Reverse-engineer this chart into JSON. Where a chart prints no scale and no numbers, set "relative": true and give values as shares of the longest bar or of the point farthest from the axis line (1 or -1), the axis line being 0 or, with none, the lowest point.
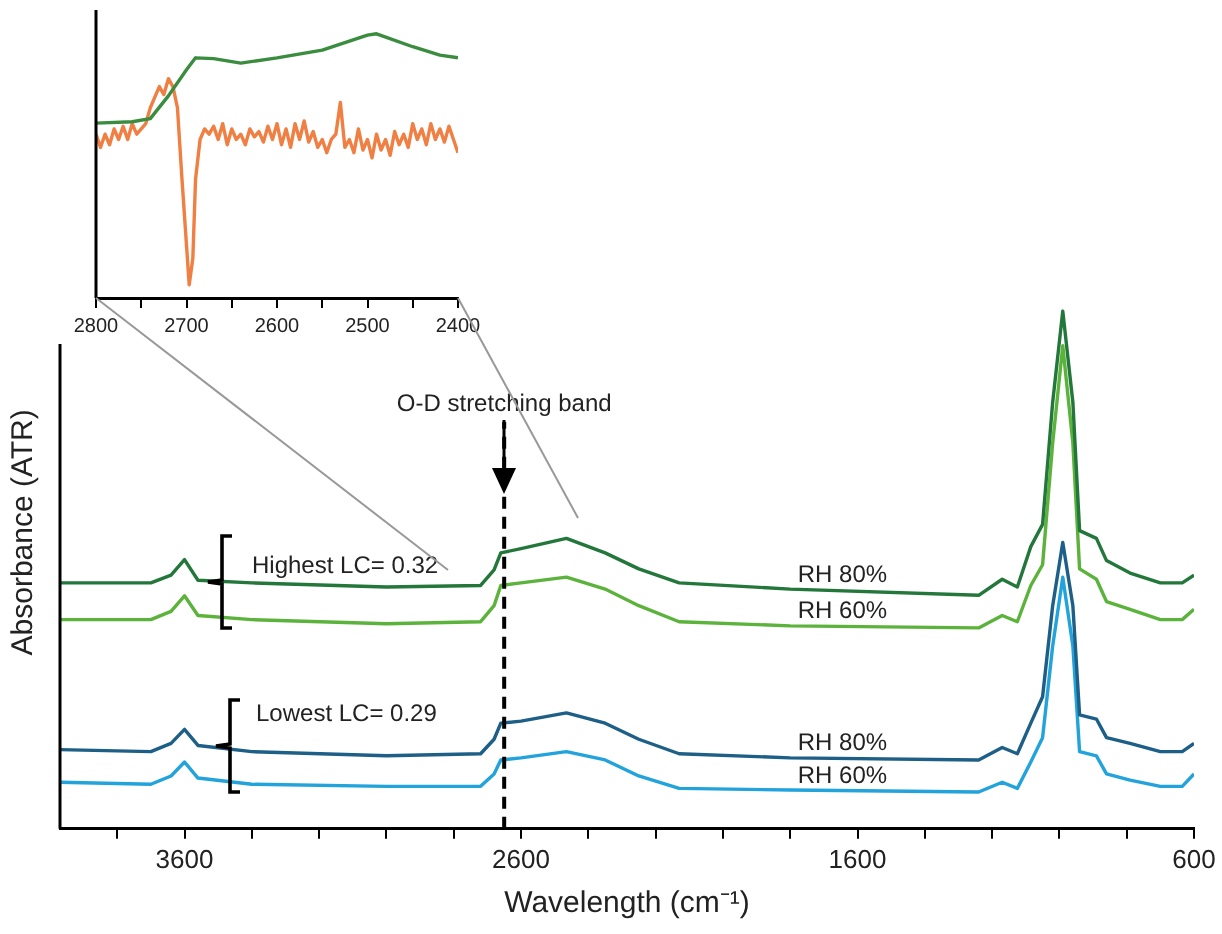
{
  "chart_data": [
    {
      "type": "line",
      "relative": true,
      "xlabel": "Wavelength (cm⁻¹)",
      "ylabel": "Absorbance (ATR)",
      "xlim": [
        3970,
        600
      ],
      "xticks": [
        {
          "value": 3800,
          "label": null
        },
        3600,
        {
          "value": 3400,
          "label": null
        },
        {
          "value": 3200,
          "label": null
        },
        {
          "value": 3000,
          "label": null
        },
        {
          "value": 2800,
          "label": null
        },
        2600,
        {
          "value": 2400,
          "label": null
        },
        {
          "value": 2200,
          "label": null
        },
        {
          "value": 2000,
          "label": null
        },
        {
          "value": 1800,
          "label": null
        },
        1600,
        {
          "value": 1400,
          "label": null
        },
        {
          "value": 1200,
          "label": null
        },
        {
          "value": 1000,
          "label": null
        },
        {
          "value": 800,
          "label": null
        },
        600
      ],
      "x": [
        3970,
        3700,
        3640,
        3600,
        3560,
        3400,
        3000,
        2720,
        2680,
        2660,
        2600,
        2465,
        2350,
        2250,
        2130,
        1800,
        1240,
        1170,
        1125,
        1085,
        1050,
        1020,
        990,
        960,
        940,
        890,
        860,
        790,
        700,
        635,
        600
      ],
      "series": [
        {
          "name": "RH 80%",
          "color": "#23773a",
          "values": [
            0.475,
            0.475,
            0.49,
            0.52,
            0.48,
            0.475,
            0.467,
            0.47,
            0.5,
            0.533,
            0.541,
            0.561,
            0.533,
            0.502,
            0.475,
            0.463,
            0.451,
            0.482,
            0.467,
            0.545,
            0.588,
            0.824,
            1,
            0.824,
            0.576,
            0.561,
            0.518,
            0.494,
            0.475,
            0.475,
            0.49
          ]
        },
        {
          "name": "RH 60%",
          "color": "#5cb33c",
          "values": [
            0.404,
            0.404,
            0.42,
            0.45,
            0.412,
            0.404,
            0.396,
            0.4,
            0.431,
            0.47,
            0.475,
            0.486,
            0.463,
            0.431,
            0.4,
            0.392,
            0.388,
            0.412,
            0.4,
            0.47,
            0.51,
            0.745,
            0.933,
            0.745,
            0.502,
            0.482,
            0.439,
            0.424,
            0.404,
            0.404,
            0.424
          ]
        },
        {
          "name": "RH 80%",
          "color": "#1d5f86",
          "values": [
            0.153,
            0.149,
            0.165,
            0.192,
            0.161,
            0.149,
            0.141,
            0.145,
            0.173,
            0.204,
            0.208,
            0.224,
            0.204,
            0.173,
            0.145,
            0.137,
            0.133,
            0.157,
            0.145,
            0.204,
            0.255,
            0.431,
            0.553,
            0.431,
            0.22,
            0.212,
            0.176,
            0.165,
            0.149,
            0.149,
            0.165
          ]
        },
        {
          "name": "RH 60%",
          "color": "#22a3dc",
          "values": [
            0.09,
            0.086,
            0.102,
            0.129,
            0.098,
            0.086,
            0.082,
            0.082,
            0.106,
            0.133,
            0.137,
            0.149,
            0.133,
            0.102,
            0.078,
            0.075,
            0.071,
            0.09,
            0.078,
            0.129,
            0.176,
            0.353,
            0.486,
            0.353,
            0.149,
            0.141,
            0.106,
            0.094,
            0.082,
            0.082,
            0.106
          ]
        }
      ],
      "ref_lines": [
        {
          "axis": "x",
          "value": 2650,
          "label": "O-D stretching band",
          "line_style": "dashed",
          "color": "#000000"
        }
      ],
      "annotations": [
        "Highest LC= 0.32",
        "Lowest LC= 0.29"
      ]
    },
    {
      "type": "line",
      "relative": true,
      "xlim": [
        2800,
        2400
      ],
      "xticks": [
        2800,
        {
          "value": 2750,
          "label": null
        },
        2700,
        {
          "value": 2650,
          "label": null
        },
        2600,
        {
          "value": 2550,
          "label": null
        },
        2500,
        {
          "value": 2450,
          "label": null
        },
        2400
      ],
      "series": [
        {
          "color": "#3a8c3f",
          "x": [
            2800,
            2760,
            2740,
            2720,
            2700,
            2690,
            2670,
            2640,
            2600,
            2550,
            2500,
            2490,
            2450,
            2420,
            2400
          ],
          "values": [
            0.662,
            0.667,
            0.679,
            0.765,
            0.864,
            0.909,
            0.906,
            0.889,
            0.909,
            0.938,
            0.995,
            1,
            0.951,
            0.919,
            0.909
          ]
        },
        {
          "color": "#f07f43",
          "x": [
            2800,
            2795,
            2790,
            2785,
            2780,
            2775,
            2770,
            2765,
            2760,
            2755,
            2750,
            2745,
            2740,
            2735,
            2730,
            2725,
            2720,
            2715,
            2710,
            2705,
            2700,
            2697,
            2693,
            2690,
            2685,
            2680,
            2675,
            2670,
            2665,
            2660,
            2655,
            2650,
            2645,
            2640,
            2635,
            2630,
            2625,
            2620,
            2615,
            2610,
            2605,
            2600,
            2595,
            2590,
            2585,
            2580,
            2575,
            2570,
            2565,
            2560,
            2555,
            2550,
            2545,
            2540,
            2535,
            2530,
            2525,
            2520,
            2515,
            2510,
            2505,
            2500,
            2495,
            2490,
            2485,
            2480,
            2475,
            2470,
            2465,
            2460,
            2455,
            2450,
            2445,
            2440,
            2435,
            2430,
            2425,
            2420,
            2415,
            2410,
            2405,
            2400
          ],
          "values": [
            0.62,
            0.57,
            0.62,
            0.58,
            0.64,
            0.6,
            0.65,
            0.6,
            0.66,
            0.62,
            0.64,
            0.66,
            0.72,
            0.76,
            0.8,
            0.77,
            0.83,
            0.8,
            0.72,
            0.45,
            0.2,
            0.05,
            0.15,
            0.45,
            0.6,
            0.64,
            0.62,
            0.65,
            0.6,
            0.66,
            0.58,
            0.64,
            0.6,
            0.62,
            0.58,
            0.64,
            0.61,
            0.63,
            0.59,
            0.65,
            0.6,
            0.66,
            0.58,
            0.64,
            0.57,
            0.66,
            0.6,
            0.67,
            0.59,
            0.63,
            0.57,
            0.6,
            0.55,
            0.6,
            0.62,
            0.74,
            0.57,
            0.6,
            0.55,
            0.64,
            0.56,
            0.6,
            0.53,
            0.62,
            0.56,
            0.6,
            0.54,
            0.63,
            0.58,
            0.62,
            0.57,
            0.66,
            0.6,
            0.64,
            0.58,
            0.66,
            0.6,
            0.64,
            0.59,
            0.65,
            0.6,
            0.55
          ]
        }
      ]
    }
  ]
}
